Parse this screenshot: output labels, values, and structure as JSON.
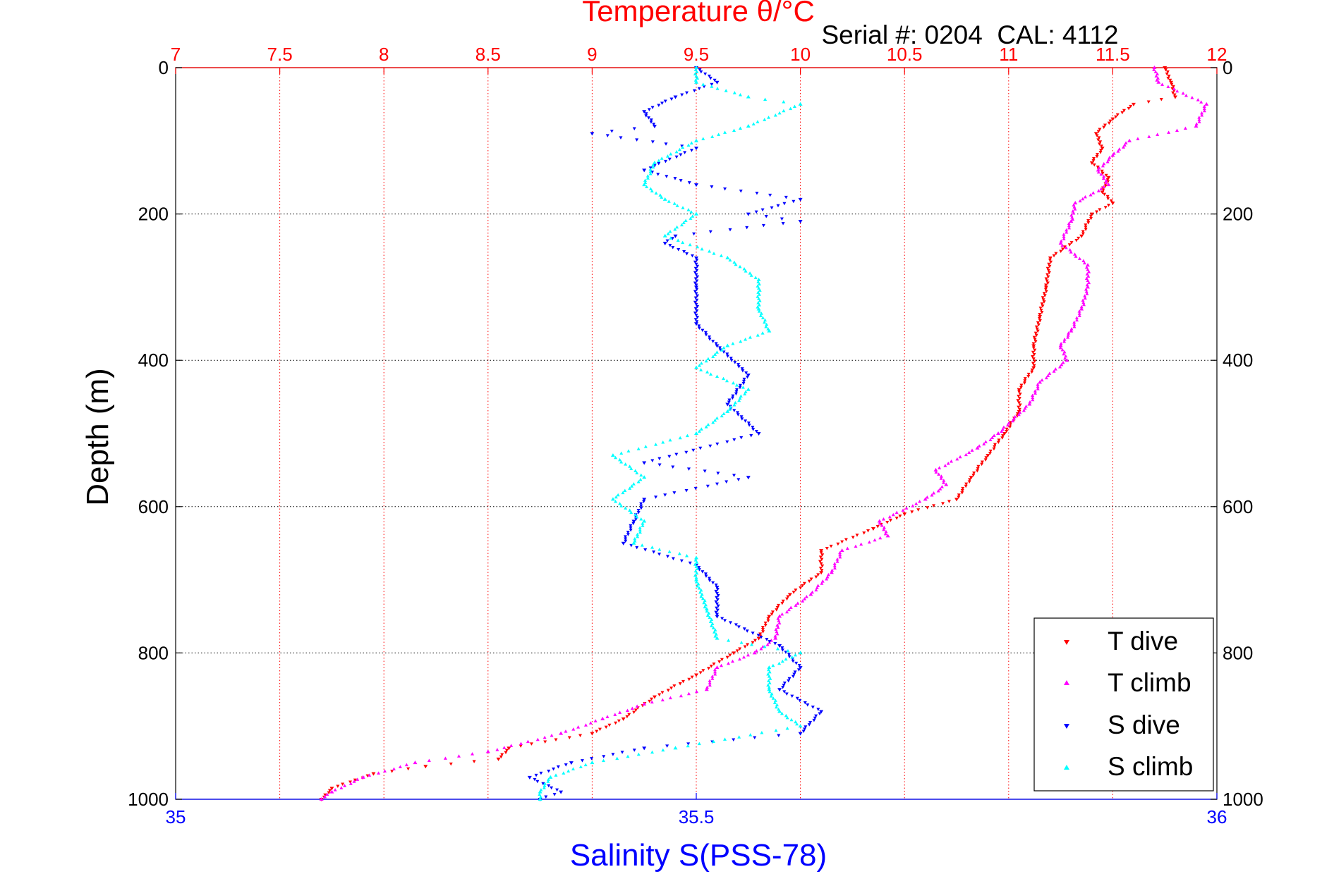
{
  "chart_data": {
    "type": "scatter",
    "title": "Temperature θ/°C",
    "subtitle": "Serial #: 0204  CAL: 4112",
    "ylabel": "Depth (m)",
    "xlabel_bottom": "Salinity S(PSS-78)",
    "ylim": [
      0,
      1000
    ],
    "y_reversed": true,
    "y_ticks": [
      "0",
      "200",
      "400",
      "600",
      "800",
      "1000"
    ],
    "y_tick_values": [
      0,
      200,
      400,
      600,
      800,
      1000
    ],
    "x_top": {
      "label": "Temperature θ/°C",
      "range": [
        7,
        12
      ],
      "ticks": [
        "7",
        "7.5",
        "8",
        "8.5",
        "9",
        "9.5",
        "10",
        "10.5",
        "11",
        "11.5",
        "12"
      ],
      "tick_values": [
        7,
        7.5,
        8,
        8.5,
        9,
        9.5,
        10,
        10.5,
        11,
        11.5,
        12
      ],
      "color": "#ff0000"
    },
    "x_bottom": {
      "label": "Salinity S(PSS-78)",
      "range": [
        35,
        36
      ],
      "ticks": [
        "35",
        "35.5",
        "36"
      ],
      "tick_values": [
        35,
        35.5,
        36
      ],
      "color": "#0000ff"
    },
    "grid": true,
    "legend_position": "bottom-right",
    "series": [
      {
        "name": "T dive",
        "axis": "top",
        "color": "#ff0000",
        "marker": "triangle-down",
        "points": [
          [
            11.75,
            0
          ],
          [
            11.78,
            20
          ],
          [
            11.8,
            40
          ],
          [
            11.6,
            50
          ],
          [
            11.5,
            70
          ],
          [
            11.42,
            90
          ],
          [
            11.45,
            110
          ],
          [
            11.4,
            130
          ],
          [
            11.48,
            150
          ],
          [
            11.45,
            170
          ],
          [
            11.5,
            185
          ],
          [
            11.4,
            200
          ],
          [
            11.35,
            230
          ],
          [
            11.2,
            260
          ],
          [
            11.18,
            300
          ],
          [
            11.15,
            340
          ],
          [
            11.12,
            380
          ],
          [
            11.12,
            410
          ],
          [
            11.05,
            440
          ],
          [
            11.05,
            470
          ],
          [
            10.98,
            500
          ],
          [
            10.9,
            530
          ],
          [
            10.82,
            560
          ],
          [
            10.75,
            590
          ],
          [
            10.5,
            610
          ],
          [
            10.35,
            630
          ],
          [
            10.1,
            660
          ],
          [
            10.1,
            690
          ],
          [
            9.95,
            720
          ],
          [
            9.85,
            750
          ],
          [
            9.8,
            780
          ],
          [
            9.68,
            800
          ],
          [
            9.5,
            830
          ],
          [
            9.3,
            860
          ],
          [
            9.15,
            890
          ],
          [
            9.0,
            910
          ],
          [
            8.6,
            930
          ],
          [
            8.55,
            945
          ],
          [
            8.2,
            955
          ],
          [
            7.95,
            965
          ],
          [
            7.75,
            985
          ],
          [
            7.7,
            1000
          ]
        ]
      },
      {
        "name": "T climb",
        "axis": "top",
        "color": "#ff00ff",
        "marker": "triangle-up",
        "points": [
          [
            11.7,
            0
          ],
          [
            11.72,
            20
          ],
          [
            11.95,
            50
          ],
          [
            11.9,
            80
          ],
          [
            11.58,
            100
          ],
          [
            11.5,
            120
          ],
          [
            11.43,
            140
          ],
          [
            11.48,
            160
          ],
          [
            11.32,
            185
          ],
          [
            11.3,
            210
          ],
          [
            11.25,
            240
          ],
          [
            11.38,
            270
          ],
          [
            11.38,
            300
          ],
          [
            11.35,
            330
          ],
          [
            11.3,
            360
          ],
          [
            11.25,
            380
          ],
          [
            11.28,
            400
          ],
          [
            11.15,
            430
          ],
          [
            11.1,
            460
          ],
          [
            10.95,
            500
          ],
          [
            10.85,
            520
          ],
          [
            10.65,
            550
          ],
          [
            10.7,
            570
          ],
          [
            10.6,
            590
          ],
          [
            10.38,
            620
          ],
          [
            10.42,
            640
          ],
          [
            10.2,
            660
          ],
          [
            10.15,
            690
          ],
          [
            10.05,
            720
          ],
          [
            9.9,
            750
          ],
          [
            9.88,
            780
          ],
          [
            9.78,
            800
          ],
          [
            9.6,
            820
          ],
          [
            9.55,
            850
          ],
          [
            9.25,
            870
          ],
          [
            9.05,
            890
          ],
          [
            8.85,
            910
          ],
          [
            8.5,
            935
          ],
          [
            8.15,
            950
          ],
          [
            7.9,
            970
          ],
          [
            7.75,
            990
          ],
          [
            7.7,
            1000
          ]
        ]
      },
      {
        "name": "S dive",
        "axis": "bottom",
        "color": "#0000ff",
        "marker": "triangle-down",
        "points": [
          [
            35.5,
            0
          ],
          [
            35.52,
            20
          ],
          [
            35.48,
            40
          ],
          [
            35.45,
            60
          ],
          [
            35.46,
            80
          ],
          [
            35.4,
            90
          ],
          [
            35.5,
            110
          ],
          [
            35.45,
            140
          ],
          [
            35.5,
            160
          ],
          [
            35.6,
            180
          ],
          [
            35.55,
            200
          ],
          [
            35.6,
            210
          ],
          [
            35.48,
            230
          ],
          [
            35.47,
            240
          ],
          [
            35.5,
            260
          ],
          [
            35.5,
            300
          ],
          [
            35.5,
            350
          ],
          [
            35.52,
            380
          ],
          [
            35.55,
            420
          ],
          [
            35.53,
            460
          ],
          [
            35.56,
            500
          ],
          [
            35.45,
            540
          ],
          [
            35.55,
            560
          ],
          [
            35.45,
            590
          ],
          [
            35.44,
            620
          ],
          [
            35.43,
            650
          ],
          [
            35.5,
            680
          ],
          [
            35.52,
            710
          ],
          [
            35.52,
            750
          ],
          [
            35.58,
            790
          ],
          [
            35.6,
            820
          ],
          [
            35.58,
            850
          ],
          [
            35.62,
            880
          ],
          [
            35.6,
            910
          ],
          [
            35.45,
            930
          ],
          [
            35.38,
            950
          ],
          [
            35.34,
            970
          ],
          [
            35.37,
            990
          ],
          [
            35.35,
            1000
          ]
        ]
      },
      {
        "name": "S climb",
        "axis": "bottom",
        "color": "#00ffff",
        "marker": "triangle-up",
        "points": [
          [
            35.5,
            0
          ],
          [
            35.5,
            20
          ],
          [
            35.55,
            40
          ],
          [
            35.6,
            50
          ],
          [
            35.55,
            80
          ],
          [
            35.5,
            100
          ],
          [
            35.46,
            130
          ],
          [
            35.45,
            160
          ],
          [
            35.47,
            180
          ],
          [
            35.5,
            200
          ],
          [
            35.47,
            230
          ],
          [
            35.53,
            260
          ],
          [
            35.56,
            290
          ],
          [
            35.56,
            330
          ],
          [
            35.57,
            360
          ],
          [
            35.53,
            380
          ],
          [
            35.5,
            410
          ],
          [
            35.55,
            440
          ],
          [
            35.53,
            470
          ],
          [
            35.5,
            500
          ],
          [
            35.42,
            530
          ],
          [
            35.45,
            560
          ],
          [
            35.42,
            590
          ],
          [
            35.45,
            620
          ],
          [
            35.44,
            650
          ],
          [
            35.5,
            670
          ],
          [
            35.5,
            700
          ],
          [
            35.51,
            740
          ],
          [
            35.52,
            780
          ],
          [
            35.6,
            800
          ],
          [
            35.57,
            820
          ],
          [
            35.57,
            850
          ],
          [
            35.58,
            880
          ],
          [
            35.6,
            900
          ],
          [
            35.48,
            930
          ],
          [
            35.4,
            950
          ],
          [
            35.36,
            970
          ],
          [
            35.35,
            990
          ],
          [
            35.35,
            1000
          ]
        ]
      }
    ]
  }
}
